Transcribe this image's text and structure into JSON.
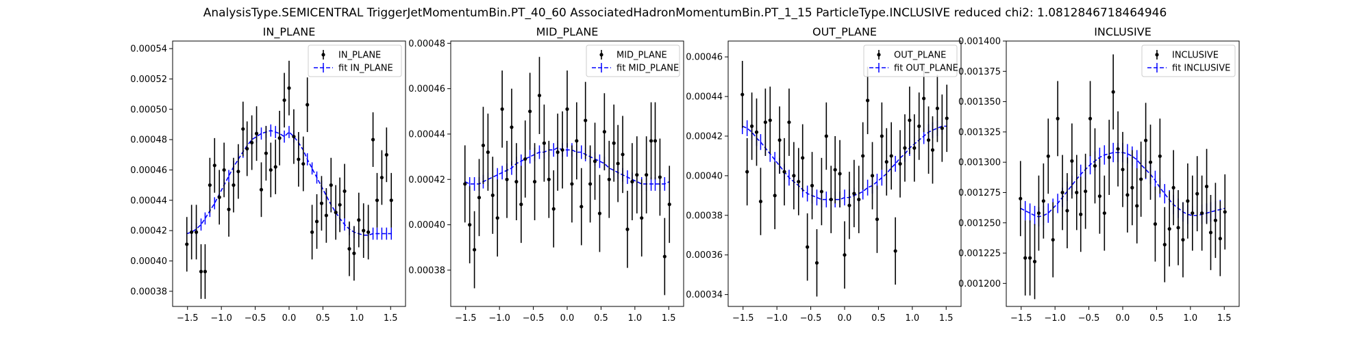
{
  "suptitle": "AnalysisType.SEMICENTRAL TriggerJetMomentumBin.PT_40_60 AssociatedHadronMomentumBin.PT_1_15 ParticleType.INCLUSIVE reduced chi2: 1.0812846718464946",
  "colors": {
    "data": "#000000",
    "fit": "#0000ff",
    "axes": "#000000"
  },
  "chart_data": [
    {
      "type": "scatter",
      "title": "IN_PLANE",
      "xlim": [
        -1.72,
        1.72
      ],
      "ylim": [
        0.00037,
        0.000545
      ],
      "xticks": [
        -1.5,
        -1.0,
        -0.5,
        0.0,
        0.5,
        1.0,
        1.5
      ],
      "xtick_labels": [
        "−1.5",
        "−1.0",
        "−0.5",
        "0.0",
        "0.5",
        "1.0",
        "1.5"
      ],
      "yticks": [
        0.00038,
        0.0004,
        0.00042,
        0.00044,
        0.00046,
        0.00048,
        0.0005,
        0.00052,
        0.00054
      ],
      "ytick_labels": [
        "0.00038",
        "0.00040",
        "0.00042",
        "0.00044",
        "0.00046",
        "0.00048",
        "0.00050",
        "0.00052",
        "0.00054"
      ],
      "legend": {
        "position": "top-right",
        "data_label": "IN_PLANE",
        "fit_label": "fit IN_PLANE"
      },
      "series": [
        {
          "role": "data",
          "x": [
            -1.51,
            -1.44,
            -1.37,
            -1.3,
            -1.24,
            -1.17,
            -1.1,
            -1.03,
            -0.96,
            -0.89,
            -0.82,
            -0.75,
            -0.68,
            -0.62,
            -0.55,
            -0.48,
            -0.41,
            -0.34,
            -0.27,
            -0.2,
            -0.14,
            -0.07,
            0.0,
            0.07,
            0.14,
            0.21,
            0.27,
            0.34,
            0.41,
            0.48,
            0.55,
            0.62,
            0.69,
            0.75,
            0.82,
            0.89,
            0.96,
            1.03,
            1.1,
            1.17,
            1.24,
            1.3,
            1.37,
            1.44,
            1.51
          ],
          "y": [
            0.000411,
            0.000419,
            0.000419,
            0.000393,
            0.000393,
            0.00045,
            0.000463,
            0.000442,
            0.00046,
            0.000434,
            0.00045,
            0.000459,
            0.000487,
            0.000474,
            0.000478,
            0.000484,
            0.000447,
            0.000471,
            0.00046,
            0.000462,
            0.000481,
            0.000506,
            0.000514,
            0.000482,
            0.000467,
            0.000464,
            0.000503,
            0.000419,
            0.000426,
            0.000438,
            0.00043,
            0.00045,
            0.000432,
            0.000437,
            0.000446,
            0.000408,
            0.000405,
            0.000427,
            0.00042,
            0.000419,
            0.00048,
            0.00044,
            0.000455,
            0.00047,
            0.00044
          ],
          "yerr": 1.8e-05
        },
        {
          "role": "fit",
          "x": [
            -1.51,
            -1.44,
            -1.37,
            -1.3,
            -1.24,
            -1.17,
            -1.1,
            -1.03,
            -0.96,
            -0.89,
            -0.82,
            -0.75,
            -0.68,
            -0.62,
            -0.55,
            -0.48,
            -0.41,
            -0.34,
            -0.27,
            -0.2,
            -0.14,
            -0.07,
            0.0,
            0.07,
            0.14,
            0.21,
            0.27,
            0.34,
            0.41,
            0.48,
            0.55,
            0.62,
            0.69,
            0.75,
            0.82,
            0.89,
            0.96,
            1.03,
            1.1,
            1.17,
            1.24,
            1.3,
            1.37,
            1.44,
            1.51
          ],
          "y": [
            0.000418,
            0.000419,
            0.000421,
            0.000424,
            0.000428,
            0.000433,
            0.000438,
            0.000444,
            0.00045,
            0.000456,
            0.000462,
            0.000467,
            0.000472,
            0.000476,
            0.00048,
            0.000482,
            0.000484,
            0.000485,
            0.000486,
            0.000485,
            0.000484,
            0.000482,
            0.000485,
            0.000482,
            0.000478,
            0.000473,
            0.000467,
            0.000461,
            0.000455,
            0.000449,
            0.000443,
            0.000437,
            0.000432,
            0.000428,
            0.000424,
            0.000421,
            0.000419,
            0.000418,
            0.000417,
            0.000417,
            0.000418,
            0.000418,
            0.000418,
            0.000418,
            0.000418
          ],
          "yerr": 4e-06
        }
      ]
    },
    {
      "type": "scatter",
      "title": "MID_PLANE",
      "xlim": [
        -1.72,
        1.72
      ],
      "ylim": [
        0.000364,
        0.000481
      ],
      "xticks": [
        -1.5,
        -1.0,
        -0.5,
        0.0,
        0.5,
        1.0,
        1.5
      ],
      "xtick_labels": [
        "−1.5",
        "−1.0",
        "−0.5",
        "0.0",
        "0.5",
        "1.0",
        "1.5"
      ],
      "yticks": [
        0.00038,
        0.0004,
        0.00042,
        0.00044,
        0.00046,
        0.00048
      ],
      "ytick_labels": [
        "0.00038",
        "0.00040",
        "0.00042",
        "0.00044",
        "0.00046",
        "0.00048"
      ],
      "legend": {
        "position": "top-right",
        "data_label": "MID_PLANE",
        "fit_label": "fit MID_PLANE"
      },
      "series": [
        {
          "role": "data",
          "x": [
            -1.51,
            -1.44,
            -1.37,
            -1.3,
            -1.24,
            -1.17,
            -1.1,
            -1.03,
            -0.96,
            -0.89,
            -0.82,
            -0.75,
            -0.68,
            -0.62,
            -0.55,
            -0.48,
            -0.41,
            -0.34,
            -0.27,
            -0.2,
            -0.14,
            -0.07,
            0.0,
            0.07,
            0.14,
            0.21,
            0.27,
            0.34,
            0.41,
            0.48,
            0.55,
            0.62,
            0.69,
            0.75,
            0.82,
            0.89,
            0.96,
            1.03,
            1.1,
            1.17,
            1.24,
            1.3,
            1.37,
            1.44,
            1.51
          ],
          "y": [
            0.000418,
            0.0004,
            0.000389,
            0.000412,
            0.000435,
            0.000432,
            0.000413,
            0.000403,
            0.000451,
            0.00042,
            0.000443,
            0.000419,
            0.000409,
            0.000429,
            0.00045,
            0.000419,
            0.000457,
            0.000436,
            0.00042,
            0.000407,
            0.000432,
            0.000433,
            0.000451,
            0.000418,
            0.000437,
            0.000408,
            0.000446,
            0.000418,
            0.000428,
            0.000405,
            0.000441,
            0.00042,
            0.000436,
            0.000427,
            0.000431,
            0.000398,
            0.000419,
            0.000422,
            0.000403,
            0.000422,
            0.000437,
            0.000437,
            0.000421,
            0.000386,
            0.000409
          ],
          "yerr": 1.7e-05
        },
        {
          "role": "fit",
          "x": [
            -1.51,
            -1.44,
            -1.37,
            -1.3,
            -1.24,
            -1.17,
            -1.1,
            -1.03,
            -0.96,
            -0.89,
            -0.82,
            -0.75,
            -0.68,
            -0.62,
            -0.55,
            -0.48,
            -0.41,
            -0.34,
            -0.27,
            -0.2,
            -0.14,
            -0.07,
            0.0,
            0.07,
            0.14,
            0.21,
            0.27,
            0.34,
            0.41,
            0.48,
            0.55,
            0.62,
            0.69,
            0.75,
            0.82,
            0.89,
            0.96,
            1.03,
            1.1,
            1.17,
            1.24,
            1.3,
            1.37,
            1.44,
            1.51
          ],
          "y": [
            0.000419,
            0.000418,
            0.000418,
            0.000418,
            0.000419,
            0.00042,
            0.000421,
            0.000422,
            0.000423,
            0.000424,
            0.000425,
            0.000427,
            0.000428,
            0.000429,
            0.00043,
            0.000431,
            0.000432,
            0.000432,
            0.000433,
            0.000433,
            0.000434,
            0.000433,
            0.000433,
            0.000433,
            0.000432,
            0.000432,
            0.000431,
            0.00043,
            0.000429,
            0.000428,
            0.000427,
            0.000425,
            0.000424,
            0.000423,
            0.000422,
            0.000421,
            0.00042,
            0.000419,
            0.000418,
            0.000418,
            0.000418,
            0.000418,
            0.000418,
            0.000418,
            0.000419
          ],
          "yerr": 3e-06
        }
      ]
    },
    {
      "type": "scatter",
      "title": "OUT_PLANE",
      "xlim": [
        -1.72,
        1.72
      ],
      "ylim": [
        0.000334,
        0.000468
      ],
      "xticks": [
        -1.5,
        -1.0,
        -0.5,
        0.0,
        0.5,
        1.0,
        1.5
      ],
      "xtick_labels": [
        "−1.5",
        "−1.0",
        "−0.5",
        "0.0",
        "0.5",
        "1.0",
        "1.5"
      ],
      "yticks": [
        0.00034,
        0.00036,
        0.00038,
        0.0004,
        0.00042,
        0.00044,
        0.00046
      ],
      "ytick_labels": [
        "0.00034",
        "0.00036",
        "0.00038",
        "0.00040",
        "0.00042",
        "0.00044",
        "0.00046"
      ],
      "legend": {
        "position": "top-right",
        "data_label": "OUT_PLANE",
        "fit_label": "fit OUT_PLANE"
      },
      "series": [
        {
          "role": "data",
          "x": [
            -1.51,
            -1.44,
            -1.37,
            -1.3,
            -1.24,
            -1.17,
            -1.1,
            -1.03,
            -0.96,
            -0.89,
            -0.82,
            -0.75,
            -0.68,
            -0.62,
            -0.55,
            -0.48,
            -0.41,
            -0.34,
            -0.27,
            -0.2,
            -0.14,
            -0.07,
            0.0,
            0.07,
            0.14,
            0.21,
            0.27,
            0.34,
            0.41,
            0.48,
            0.55,
            0.62,
            0.69,
            0.75,
            0.82,
            0.89,
            0.96,
            1.03,
            1.1,
            1.17,
            1.24,
            1.3,
            1.37,
            1.44,
            1.51
          ],
          "y": [
            0.000441,
            0.000402,
            0.000425,
            0.000422,
            0.000387,
            0.000427,
            0.000428,
            0.00039,
            0.000418,
            0.000402,
            0.000427,
            0.0004,
            0.000397,
            0.000409,
            0.000364,
            0.000395,
            0.000356,
            0.000392,
            0.00042,
            0.000388,
            0.000403,
            0.000401,
            0.00036,
            0.000385,
            0.000391,
            0.000388,
            0.00041,
            0.000438,
            0.0004,
            0.000378,
            0.00042,
            0.000407,
            0.00041,
            0.000362,
            0.000406,
            0.000414,
            0.000428,
            0.000414,
            0.000425,
            0.000439,
            0.000418,
            0.000413,
            0.000434,
            0.000424,
            0.000429
          ],
          "yerr": 1.7e-05
        },
        {
          "role": "fit",
          "x": [
            -1.51,
            -1.44,
            -1.37,
            -1.3,
            -1.24,
            -1.17,
            -1.1,
            -1.03,
            -0.96,
            -0.89,
            -0.82,
            -0.75,
            -0.68,
            -0.62,
            -0.55,
            -0.48,
            -0.41,
            -0.34,
            -0.27,
            -0.2,
            -0.14,
            -0.07,
            0.0,
            0.07,
            0.14,
            0.21,
            0.27,
            0.34,
            0.41,
            0.48,
            0.55,
            0.62,
            0.69,
            0.75,
            0.82,
            0.89,
            0.96,
            1.03,
            1.1,
            1.17,
            1.24,
            1.3,
            1.37,
            1.44,
            1.51
          ],
          "y": [
            0.000425,
            0.000424,
            0.000422,
            0.000419,
            0.000417,
            0.000414,
            0.000411,
            0.000408,
            0.000405,
            0.000402,
            0.000399,
            0.000397,
            0.000395,
            0.000393,
            0.000391,
            0.00039,
            0.000389,
            0.000388,
            0.000388,
            0.000388,
            0.000388,
            0.000388,
            0.000389,
            0.000389,
            0.00039,
            0.000391,
            0.000392,
            0.000394,
            0.000395,
            0.000397,
            0.000399,
            0.000401,
            0.000404,
            0.000406,
            0.000409,
            0.000411,
            0.000414,
            0.000416,
            0.000418,
            0.00042,
            0.000422,
            0.000423,
            0.000424,
            0.000425,
            0.000425
          ],
          "yerr": 4e-06
        }
      ]
    },
    {
      "type": "scatter",
      "title": "INCLUSIVE",
      "xlim": [
        -1.72,
        1.72
      ],
      "ylim": [
        0.001181,
        0.0014
      ],
      "xticks": [
        -1.5,
        -1.0,
        -0.5,
        0.0,
        0.5,
        1.0,
        1.5
      ],
      "xtick_labels": [
        "−1.5",
        "−1.0",
        "−0.5",
        "0.0",
        "0.5",
        "1.0",
        "1.5"
      ],
      "yticks": [
        0.0012,
        0.001225,
        0.00125,
        0.001275,
        0.0013,
        0.001325,
        0.00135,
        0.001375,
        0.0014
      ],
      "ytick_labels": [
        "0.001200",
        "0.001225",
        "0.001250",
        "0.001275",
        "0.001300",
        "0.001325",
        "0.001350",
        "0.001375",
        "0.001400"
      ],
      "legend": {
        "position": "top-right",
        "data_label": "INCLUSIVE",
        "fit_label": "fit INCLUSIVE"
      },
      "series": [
        {
          "role": "data",
          "x": [
            -1.51,
            -1.44,
            -1.37,
            -1.3,
            -1.24,
            -1.17,
            -1.1,
            -1.03,
            -0.96,
            -0.89,
            -0.82,
            -0.75,
            -0.68,
            -0.62,
            -0.55,
            -0.48,
            -0.41,
            -0.34,
            -0.27,
            -0.2,
            -0.14,
            -0.07,
            0.0,
            0.07,
            0.14,
            0.21,
            0.27,
            0.34,
            0.41,
            0.48,
            0.55,
            0.62,
            0.69,
            0.75,
            0.82,
            0.89,
            0.96,
            1.03,
            1.1,
            1.17,
            1.24,
            1.3,
            1.37,
            1.44,
            1.51
          ],
          "y": [
            0.00127,
            0.001221,
            0.001221,
            0.001218,
            0.001258,
            0.001268,
            0.001305,
            0.001236,
            0.001336,
            0.001275,
            0.00126,
            0.001301,
            0.001275,
            0.001257,
            0.001276,
            0.001336,
            0.001297,
            0.001272,
            0.001258,
            0.001304,
            0.001358,
            0.001311,
            0.001294,
            0.001273,
            0.001279,
            0.001264,
            0.001286,
            0.001318,
            0.0013,
            0.001249,
            0.001305,
            0.001232,
            0.001245,
            0.001279,
            0.001246,
            0.001236,
            0.001268,
            0.001258,
            0.001274,
            0.001258,
            0.00128,
            0.001242,
            0.001252,
            0.001237,
            0.001259
          ],
          "yerr": 3.1e-05
        },
        {
          "role": "fit",
          "x": [
            -1.51,
            -1.44,
            -1.37,
            -1.3,
            -1.24,
            -1.17,
            -1.1,
            -1.03,
            -0.96,
            -0.89,
            -0.82,
            -0.75,
            -0.68,
            -0.62,
            -0.55,
            -0.48,
            -0.41,
            -0.34,
            -0.27,
            -0.2,
            -0.14,
            -0.07,
            0.0,
            0.07,
            0.14,
            0.21,
            0.27,
            0.34,
            0.41,
            0.48,
            0.55,
            0.62,
            0.69,
            0.75,
            0.82,
            0.89,
            0.96,
            1.03,
            1.1,
            1.17,
            1.24,
            1.3,
            1.37,
            1.44,
            1.51
          ],
          "y": [
            0.001262,
            0.00126,
            0.001258,
            0.001256,
            0.001255,
            0.001256,
            0.001258,
            0.001262,
            0.001266,
            0.001271,
            0.001276,
            0.001281,
            0.001286,
            0.00129,
            0.001294,
            0.001298,
            0.001301,
            0.001304,
            0.001306,
            0.001307,
            0.001308,
            0.001308,
            0.001308,
            0.001307,
            0.001305,
            0.001302,
            0.001298,
            0.001294,
            0.00129,
            0.001285,
            0.001279,
            0.001274,
            0.001269,
            0.001265,
            0.001262,
            0.001259,
            0.001257,
            0.001256,
            0.001256,
            0.001257,
            0.001258,
            0.001259,
            0.00126,
            0.001261,
            0.001262
          ],
          "yerr": 8e-06
        }
      ]
    }
  ]
}
